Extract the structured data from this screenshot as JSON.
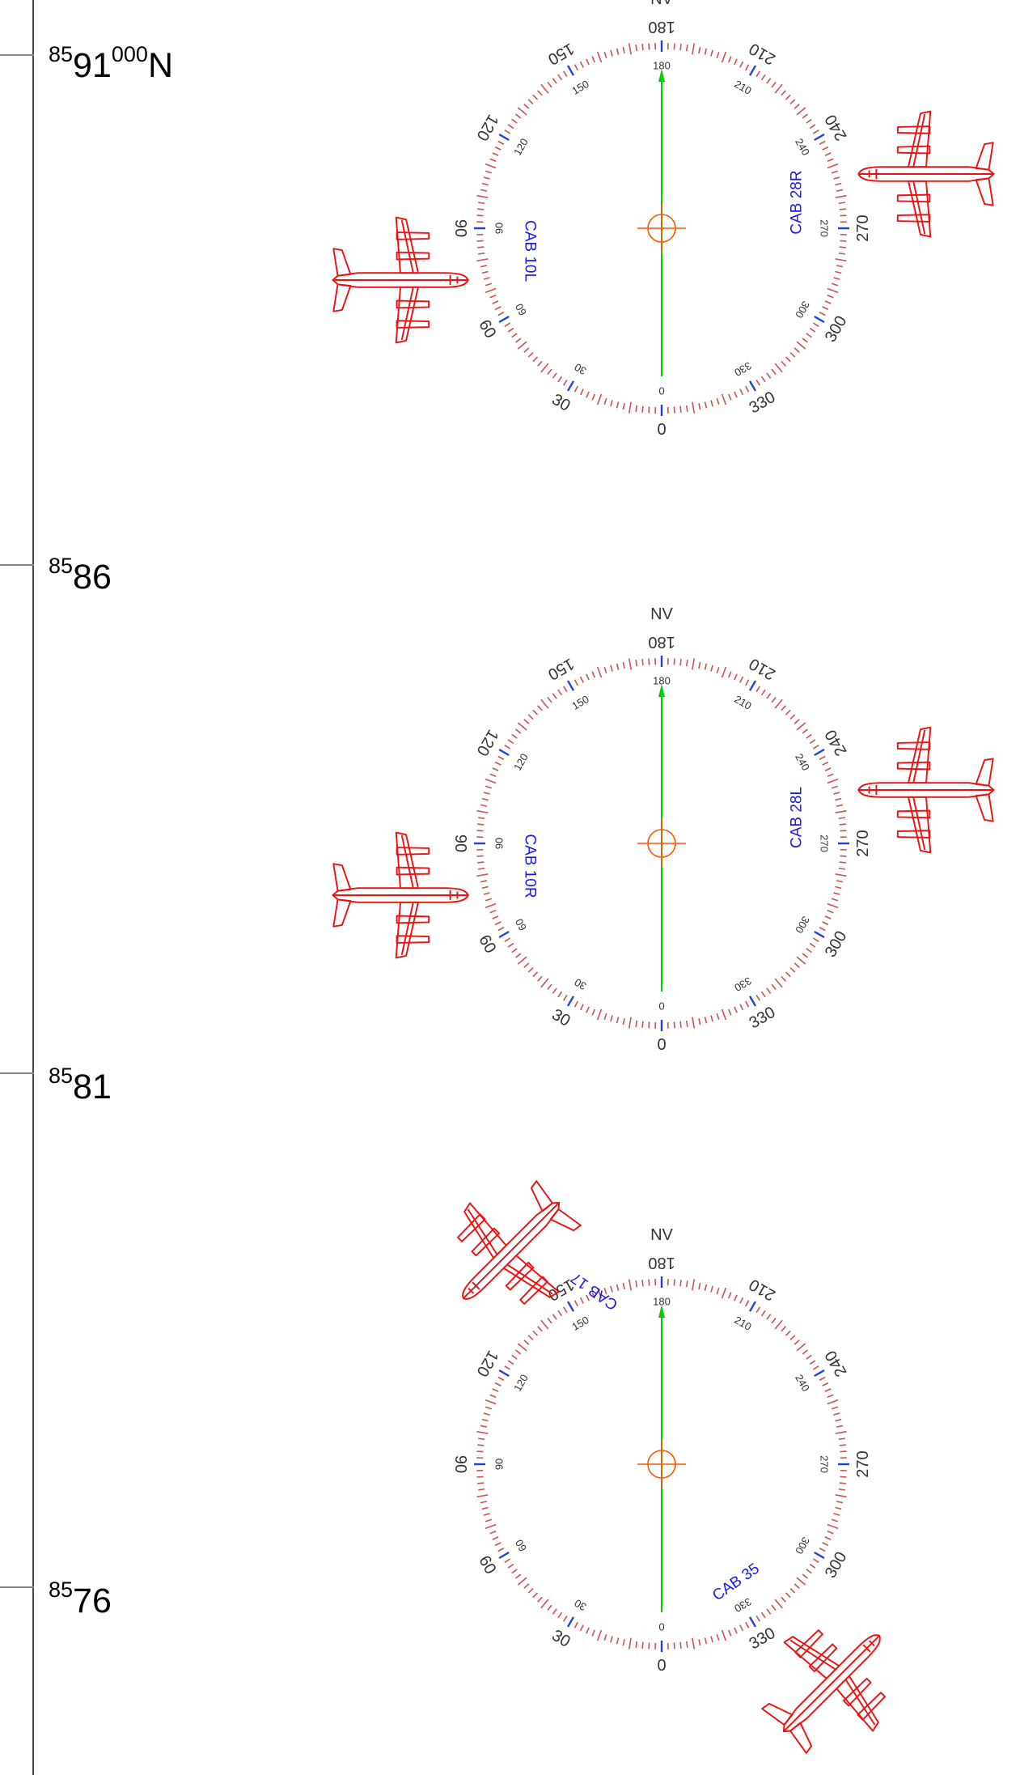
{
  "grid_labels": [
    {
      "sup": "85",
      "main": "91",
      "sup2": "000",
      "suffix": "N"
    },
    {
      "sup": "85",
      "main": "86",
      "sup2": "",
      "suffix": ""
    },
    {
      "sup": "85",
      "main": "81",
      "sup2": "",
      "suffix": ""
    },
    {
      "sup": "85",
      "main": "76",
      "sup2": "",
      "suffix": ""
    }
  ],
  "compass": {
    "north_label": "NV",
    "outer_labels": [
      "0",
      "30",
      "60",
      "90",
      "120",
      "150",
      "180",
      "210",
      "240",
      "270",
      "300",
      "330"
    ],
    "inner_labels": [
      "180",
      "210",
      "240",
      "270",
      "300",
      "330",
      "0",
      "30",
      "60",
      "90",
      "120",
      "150"
    ]
  },
  "compass_roses": [
    {
      "runways": [
        {
          "text": "CAB  10L",
          "side": "west"
        },
        {
          "text": "CAB  28R",
          "side": "east"
        }
      ]
    },
    {
      "runways": [
        {
          "text": "CAB  10R",
          "side": "west"
        },
        {
          "text": "CAB  28L",
          "side": "east"
        }
      ]
    },
    {
      "runways": [
        {
          "text": "CAB  17",
          "side": "north"
        },
        {
          "text": "CAB  35",
          "side": "south"
        }
      ]
    }
  ],
  "colors": {
    "ticks": "#d05050",
    "major_ticks": "#2040e0",
    "runway_text": "#1a1ae6",
    "aircraft": "#ee1111",
    "north_arrow": "#00cc00",
    "crosshair": "#ff5500",
    "scale_text": "#333333"
  },
  "icons": [
    "airplane-icon",
    "crosshair-icon",
    "north-arrow-icon"
  ]
}
